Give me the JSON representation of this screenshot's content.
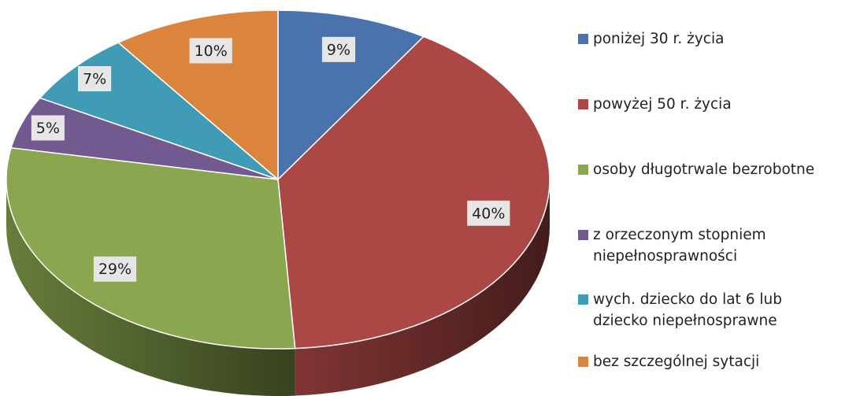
{
  "chart_data": {
    "type": "pie",
    "categories": [
      "poniżej 30 r. życia",
      "powyżej 50 r. życia",
      "osoby długotrwale bezrobotne",
      "z orzeczonym stopniem niepełnosprawności",
      "wych. dziecko do lat 6 lub dziecko niepełnosprawne",
      "bez szczególnej sytacji"
    ],
    "values": [
      9,
      40,
      29,
      5,
      7,
      10
    ],
    "value_labels": [
      "9%",
      "40%",
      "29%",
      "5%",
      "7%",
      "10%"
    ],
    "colors": [
      "#4a72ad",
      "#ab4744",
      "#8aa64e",
      "#72598f",
      "#3f9cb4",
      "#db843d"
    ],
    "legend": "right"
  }
}
